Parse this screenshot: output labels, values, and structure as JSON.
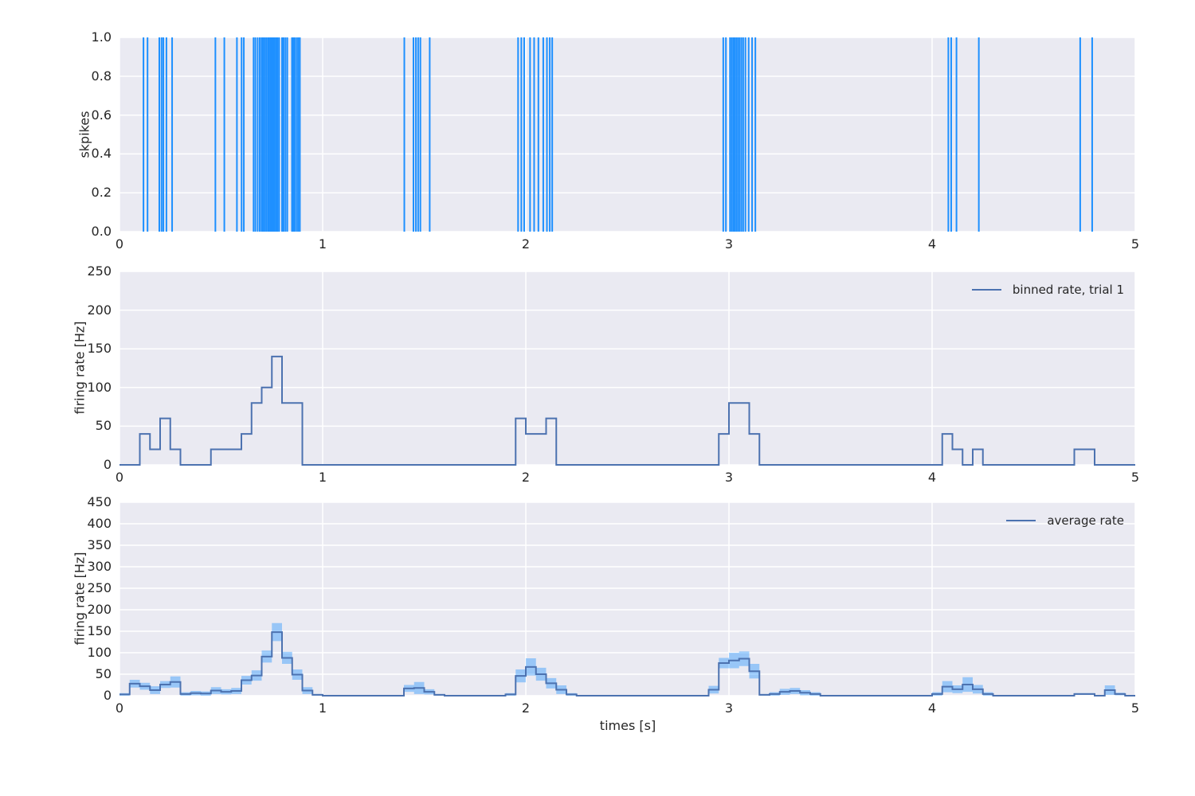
{
  "figure": {
    "xlabel": "times [s]",
    "colors": {
      "background": "#ffffff",
      "axes_background": "#eaeaf2",
      "grid": "#ffffff",
      "spike": "#1e90ff",
      "line": "#4c72b0",
      "band": "#1e90ff",
      "band_alpha": 0.4,
      "text": "#262626"
    }
  },
  "chart_data": [
    {
      "type": "event-raster",
      "title": "",
      "ylabel": "skpikes",
      "xlim": [
        0,
        5
      ],
      "ylim": [
        0,
        1
      ],
      "xticks": [
        "0",
        "1",
        "2",
        "3",
        "4",
        "5"
      ],
      "yticks": [
        "0.0",
        "0.2",
        "0.4",
        "0.6",
        "0.8",
        "1.0"
      ],
      "grid": true,
      "spike_times": [
        0.118,
        0.138,
        0.196,
        0.207,
        0.216,
        0.231,
        0.259,
        0.472,
        0.516,
        0.578,
        0.601,
        0.612,
        0.66,
        0.669,
        0.68,
        0.69,
        0.699,
        0.706,
        0.714,
        0.722,
        0.73,
        0.737,
        0.744,
        0.751,
        0.757,
        0.764,
        0.771,
        0.778,
        0.786,
        0.8,
        0.808,
        0.817,
        0.826,
        0.849,
        0.856,
        0.863,
        0.872,
        0.88,
        0.888,
        1.402,
        1.447,
        1.459,
        1.47,
        1.481,
        1.527,
        1.962,
        1.978,
        1.992,
        2.021,
        2.041,
        2.062,
        2.086,
        2.104,
        2.118,
        2.13,
        2.972,
        2.985,
        3.005,
        3.013,
        3.021,
        3.028,
        3.036,
        3.044,
        3.052,
        3.061,
        3.07,
        3.081,
        3.097,
        3.114,
        3.13,
        4.08,
        4.094,
        4.12,
        4.23,
        4.729,
        4.788
      ]
    },
    {
      "type": "step-line",
      "legend": "binned rate, trial 1",
      "ylabel": "firing rate [Hz]",
      "xlim": [
        0,
        5
      ],
      "ylim": [
        0,
        250
      ],
      "xticks": [
        "0",
        "1",
        "2",
        "3",
        "4",
        "5"
      ],
      "yticks": [
        "0",
        "50",
        "100",
        "150",
        "200",
        "250"
      ],
      "grid": true,
      "bin_width": 0.05,
      "values": [
        0,
        0,
        40,
        20,
        60,
        20,
        0,
        0,
        0,
        20,
        20,
        20,
        40,
        80,
        100,
        140,
        80,
        80,
        0,
        0,
        0,
        0,
        0,
        0,
        0,
        0,
        0,
        0,
        0,
        0,
        0,
        0,
        0,
        0,
        0,
        0,
        0,
        0,
        0,
        60,
        40,
        40,
        60,
        0,
        0,
        0,
        0,
        0,
        0,
        0,
        0,
        0,
        0,
        0,
        0,
        0,
        0,
        0,
        0,
        40,
        80,
        80,
        40,
        0,
        0,
        0,
        0,
        0,
        0,
        0,
        0,
        0,
        0,
        0,
        0,
        0,
        0,
        0,
        0,
        0,
        0,
        40,
        20,
        0,
        20,
        0,
        0,
        0,
        0,
        0,
        0,
        0,
        0,
        0,
        20,
        20,
        0,
        0,
        0,
        0
      ]
    },
    {
      "type": "step-line-with-band",
      "legend": "average rate",
      "ylabel": "firing rate [Hz]",
      "xlim": [
        0,
        5
      ],
      "ylim": [
        0,
        450
      ],
      "xticks": [
        "0",
        "1",
        "2",
        "3",
        "4",
        "5"
      ],
      "yticks": [
        "0",
        "50",
        "100",
        "150",
        "200",
        "250",
        "300",
        "350",
        "400",
        "450"
      ],
      "grid": true,
      "bin_width": 0.05,
      "mean": [
        3,
        28,
        22,
        13,
        26,
        32,
        4,
        6,
        5,
        12,
        9,
        11,
        36,
        47,
        91,
        148,
        88,
        49,
        12,
        2,
        0,
        0,
        0,
        0,
        0,
        0,
        0,
        0,
        17,
        18,
        9,
        2,
        0,
        0,
        0,
        0,
        0,
        0,
        3,
        46,
        67,
        50,
        29,
        14,
        3,
        0,
        0,
        0,
        0,
        0,
        0,
        0,
        0,
        0,
        0,
        0,
        0,
        0,
        14,
        76,
        82,
        86,
        57,
        2,
        4,
        9,
        11,
        7,
        4,
        0,
        0,
        0,
        0,
        0,
        0,
        0,
        0,
        0,
        0,
        0,
        4,
        21,
        15,
        26,
        15,
        4,
        0,
        0,
        0,
        0,
        0,
        0,
        0,
        0,
        4,
        4,
        0,
        13,
        4,
        0
      ],
      "sd": [
        3,
        9,
        8,
        9,
        8,
        13,
        4,
        5,
        5,
        8,
        6,
        7,
        10,
        12,
        14,
        21,
        14,
        12,
        8,
        2,
        0,
        0,
        0,
        0,
        0,
        0,
        0,
        0,
        8,
        14,
        6,
        2,
        0,
        0,
        0,
        0,
        0,
        0,
        3,
        15,
        20,
        15,
        12,
        10,
        3,
        0,
        0,
        0,
        0,
        0,
        0,
        0,
        0,
        0,
        0,
        0,
        0,
        0,
        9,
        12,
        18,
        17,
        17,
        2,
        4,
        7,
        7,
        6,
        4,
        0,
        0,
        0,
        0,
        0,
        0,
        0,
        0,
        0,
        0,
        0,
        4,
        13,
        9,
        17,
        10,
        4,
        0,
        0,
        0,
        0,
        0,
        0,
        0,
        0,
        2,
        2,
        0,
        11,
        3,
        0
      ]
    }
  ]
}
